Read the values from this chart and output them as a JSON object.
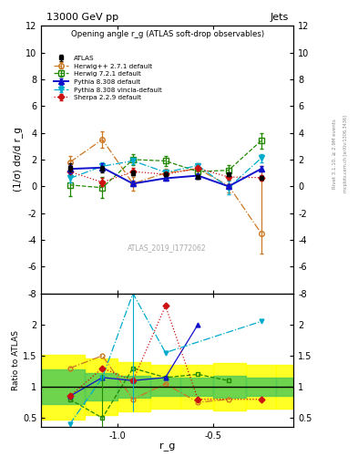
{
  "title_top": "13000 GeV pp",
  "title_right": "Jets",
  "plot_title": "Opening angle r_g (ATLAS soft-drop observables)",
  "ylabel_main": "(1/σ) dσ/d r_g",
  "ylabel_ratio": "Ratio to ATLAS",
  "xlabel": "r_g",
  "rivet_label": "Rivet 3.1.10, ≥ 2.9M events",
  "mcplots_label": "mcplots.cern.ch [arXiv:1306.3436]",
  "atlas_label": "ATLAS_2019_I1772062",
  "x_values": [
    -1.25,
    -1.08,
    -0.92,
    -0.75,
    -0.58,
    -0.42,
    -0.25
  ],
  "xlim": [
    -1.4,
    -0.08
  ],
  "ylim_main": [
    -8,
    12
  ],
  "ylim_ratio": [
    0.35,
    2.5
  ],
  "yticks_main": [
    -8,
    -6,
    -4,
    -2,
    0,
    2,
    4,
    6,
    8,
    10,
    12
  ],
  "yticks_ratio": [
    0.5,
    1.0,
    1.5,
    2.0
  ],
  "xticks": [
    -1.0,
    -0.5
  ],
  "atlas_data": {
    "y": [
      1.4,
      1.3,
      1.0,
      0.9,
      0.7,
      0.9,
      0.65
    ],
    "yerr": [
      0.3,
      0.25,
      0.15,
      0.15,
      0.15,
      0.15,
      0.15
    ],
    "color": "black",
    "marker": "s",
    "label": "ATLAS"
  },
  "herwig271": {
    "y": [
      1.8,
      3.5,
      0.2,
      1.0,
      1.3,
      0.05,
      -3.5
    ],
    "yerr_up": [
      0.5,
      0.6,
      0.5,
      0.3,
      0.4,
      0.5,
      5.0
    ],
    "yerr_dn": [
      0.5,
      0.6,
      0.5,
      0.3,
      0.4,
      0.5,
      1.5
    ],
    "color": "#cc7722",
    "marker": "o",
    "linestyle": "-.",
    "label": "Herwig++ 2.7.1 default"
  },
  "herwig721": {
    "y": [
      0.1,
      -0.1,
      2.0,
      1.9,
      1.1,
      1.2,
      3.4
    ],
    "yerr_up": [
      0.8,
      0.8,
      0.4,
      0.4,
      0.3,
      0.4,
      0.6
    ],
    "yerr_dn": [
      0.8,
      0.8,
      0.4,
      0.4,
      0.3,
      0.4,
      0.6
    ],
    "color": "#228800",
    "marker": "s",
    "linestyle": "--",
    "label": "Herwig 7.2.1 default"
  },
  "pythia8308": {
    "y": [
      1.3,
      1.4,
      0.2,
      0.6,
      0.8,
      0.0,
      1.3
    ],
    "yerr_up": [
      0.3,
      0.3,
      0.2,
      0.2,
      0.15,
      0.15,
      0.2
    ],
    "yerr_dn": [
      0.3,
      0.3,
      0.2,
      0.2,
      0.15,
      0.15,
      0.2
    ],
    "color": "#1111cc",
    "marker": "^",
    "linestyle": "-",
    "label": "Pythia 8.308 default"
  },
  "pythia8308v": {
    "y": [
      0.6,
      1.5,
      1.9,
      1.05,
      1.55,
      -0.1,
      2.1
    ],
    "yerr_up": [
      0.3,
      0.3,
      0.25,
      0.2,
      0.2,
      0.5,
      0.3
    ],
    "yerr_dn": [
      0.3,
      0.3,
      0.25,
      0.2,
      0.2,
      0.5,
      0.3
    ],
    "color": "#00aacc",
    "marker": "v",
    "linestyle": "-.",
    "label": "Pythia 8.308 vincia-default"
  },
  "sherpa229": {
    "y": [
      1.1,
      0.3,
      1.1,
      0.9,
      1.35,
      0.7,
      0.65
    ],
    "yerr_up": [
      0.3,
      0.3,
      0.25,
      0.2,
      0.2,
      0.2,
      0.2
    ],
    "yerr_dn": [
      0.3,
      0.3,
      0.25,
      0.2,
      0.2,
      0.2,
      0.2
    ],
    "color": "#cc1111",
    "marker": "D",
    "linestyle": ":",
    "label": "Sherpa 2.2.9 default"
  },
  "band_edges": [
    -1.4,
    -1.17,
    -1.0,
    -0.83,
    -0.67,
    -0.5,
    -0.33,
    -0.17,
    -0.08
  ],
  "green_band_lo": [
    0.72,
    0.78,
    0.82,
    0.85,
    0.85,
    0.82,
    0.85,
    0.85,
    0.82
  ],
  "green_band_hi": [
    1.28,
    1.22,
    1.18,
    1.15,
    1.15,
    1.18,
    1.15,
    1.15,
    1.18
  ],
  "yellow_band_lo": [
    0.48,
    0.55,
    0.6,
    0.65,
    0.65,
    0.62,
    0.65,
    0.65,
    0.62
  ],
  "yellow_band_hi": [
    1.52,
    1.45,
    1.4,
    1.35,
    1.35,
    1.38,
    1.35,
    1.35,
    1.38
  ],
  "ratio_herwig271": [
    1.3,
    1.5,
    0.8,
    1.05,
    0.75,
    0.8,
    -999
  ],
  "ratio_herwig721": [
    0.8,
    0.5,
    1.3,
    1.15,
    1.2,
    1.1,
    -999
  ],
  "ratio_pythia8308": [
    0.85,
    1.15,
    1.1,
    1.15,
    2.0,
    -999,
    -999
  ],
  "ratio_pythia8308v": [
    0.4,
    1.15,
    2.5,
    1.55,
    -999,
    -999,
    2.05
  ],
  "ratio_sherpa229": [
    0.85,
    1.3,
    1.1,
    2.3,
    0.8,
    -999,
    0.8
  ]
}
